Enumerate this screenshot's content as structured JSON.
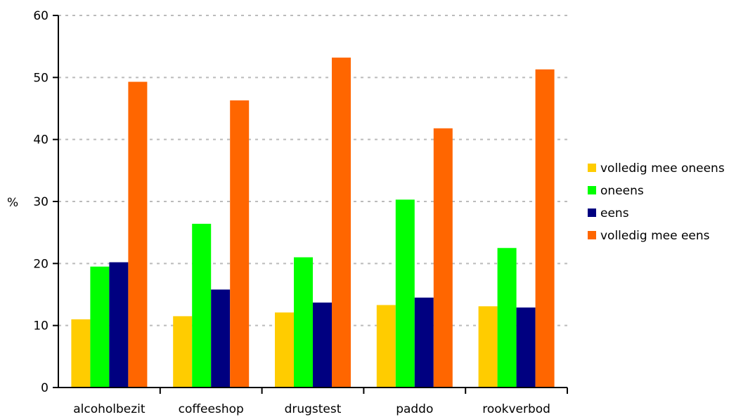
{
  "chart_data": {
    "type": "bar",
    "title": "",
    "xlabel": "",
    "ylabel": "%",
    "ylim": [
      0,
      60
    ],
    "yticks": [
      0,
      10,
      20,
      30,
      40,
      50,
      60
    ],
    "grid": true,
    "legend_position": "right",
    "categories": [
      "alcoholbezit",
      "coffeeshop",
      "drugstest",
      "paddo",
      "rookverbod"
    ],
    "series": [
      {
        "name": "volledig mee oneens",
        "color": "#FFCC00",
        "values": [
          11.0,
          11.5,
          12.1,
          13.3,
          13.1
        ]
      },
      {
        "name": "oneens",
        "color": "#00FF00",
        "values": [
          19.5,
          26.4,
          21.0,
          30.3,
          22.5
        ]
      },
      {
        "name": "eens",
        "color": "#000080",
        "values": [
          20.2,
          15.8,
          13.7,
          14.5,
          12.9
        ]
      },
      {
        "name": "volledig mee eens",
        "color": "#FF6600",
        "values": [
          49.3,
          46.3,
          53.2,
          41.8,
          51.3
        ]
      }
    ]
  }
}
